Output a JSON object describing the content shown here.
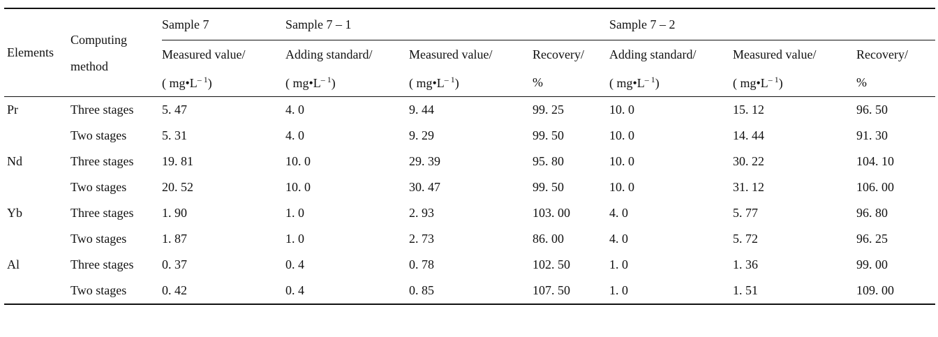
{
  "table": {
    "header": {
      "elements": "Elements",
      "computing_method_line1": "Computing",
      "computing_method_line2": "method",
      "sample7": "Sample 7",
      "sample7_1": "Sample 7 – 1",
      "sample7_2": "Sample 7 – 2",
      "measured_value": "Measured value/",
      "adding_standard": "Adding standard/",
      "recovery": "Recovery/",
      "unit_conc": "( mg•L",
      "unit_conc_sup": "– 1",
      "unit_conc_close": ")",
      "unit_pct": "%"
    },
    "rows": [
      {
        "element": "Pr",
        "method": "Three stages",
        "s7": "5. 47",
        "add1": "4. 0",
        "meas1": "9. 44",
        "rec1": "99. 25",
        "add2": "10. 0",
        "meas2": "15. 12",
        "rec2": "96. 50"
      },
      {
        "element": "",
        "method": "Two stages",
        "s7": "5. 31",
        "add1": "4. 0",
        "meas1": "9. 29",
        "rec1": "99. 50",
        "add2": "10. 0",
        "meas2": "14. 44",
        "rec2": "91. 30"
      },
      {
        "element": "Nd",
        "method": "Three stages",
        "s7": "19. 81",
        "add1": "10. 0",
        "meas1": "29. 39",
        "rec1": "95. 80",
        "add2": "10. 0",
        "meas2": "30. 22",
        "rec2": "104. 10"
      },
      {
        "element": "",
        "method": "Two stages",
        "s7": "20. 52",
        "add1": "10. 0",
        "meas1": "30. 47",
        "rec1": "99. 50",
        "add2": "10. 0",
        "meas2": "31. 12",
        "rec2": "106. 00"
      },
      {
        "element": "Yb",
        "method": "Three stages",
        "s7": "1. 90",
        "add1": "1. 0",
        "meas1": "2. 93",
        "rec1": "103. 00",
        "add2": "4. 0",
        "meas2": "5. 77",
        "rec2": "96. 80"
      },
      {
        "element": "",
        "method": "Two stages",
        "s7": "1. 87",
        "add1": "1. 0",
        "meas1": "2. 73",
        "rec1": "86. 00",
        "add2": "4. 0",
        "meas2": "5. 72",
        "rec2": "96. 25"
      },
      {
        "element": "Al",
        "method": "Three stages",
        "s7": "0. 37",
        "add1": "0. 4",
        "meas1": "0. 78",
        "rec1": "102. 50",
        "add2": "1. 0",
        "meas2": "1. 36",
        "rec2": "99. 00"
      },
      {
        "element": "",
        "method": "Two stages",
        "s7": "0. 42",
        "add1": "0. 4",
        "meas1": "0. 85",
        "rec1": "107. 50",
        "add2": "1. 0",
        "meas2": "1. 51",
        "rec2": "109. 00"
      }
    ]
  }
}
